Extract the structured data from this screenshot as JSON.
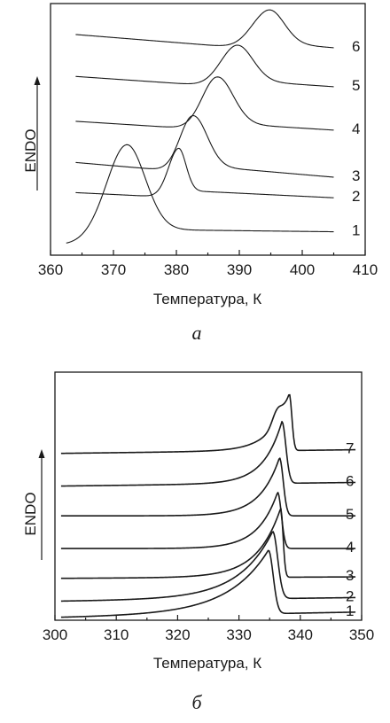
{
  "chart_data": [
    {
      "type": "line",
      "panel_label": "а",
      "xlabel": "Температура, К",
      "ylabel": "ENDO",
      "xlim": [
        360,
        410
      ],
      "x_ticks": [
        360,
        370,
        380,
        390,
        400,
        410
      ],
      "grid": false,
      "y_ticks_shown": false,
      "series": [
        {
          "name": "1",
          "x_start": 362.5,
          "x_end": 405,
          "baseline_start": 0.02,
          "baseline_end": 0.0,
          "peak_x": 372,
          "peak_height": 1.18,
          "width_left": 3.4,
          "width_right": 3.0
        },
        {
          "name": "2",
          "x_start": 364,
          "x_end": 405,
          "baseline_start": 0.73,
          "baseline_end": 0.56,
          "peak_x": 380.3,
          "peak_height": 0.62,
          "width_left": 1.6,
          "width_right": 1.2
        },
        {
          "name": "3",
          "x_start": 364,
          "x_end": 405,
          "baseline_start": 1.14,
          "baseline_end": 0.84,
          "peak_x": 382.5,
          "peak_height": 0.72,
          "width_left": 2.0,
          "width_right": 2.3
        },
        {
          "name": "4",
          "x_start": 364,
          "x_end": 405,
          "baseline_start": 1.7,
          "baseline_end": 1.48,
          "peak_x": 386.3,
          "peak_height": 0.67,
          "width_left": 2.3,
          "width_right": 2.6
        },
        {
          "name": "5",
          "x_start": 364,
          "x_end": 405,
          "baseline_start": 2.31,
          "baseline_end": 2.07,
          "peak_x": 389.4,
          "peak_height": 0.52,
          "width_left": 2.5,
          "width_right": 2.6
        },
        {
          "name": "6",
          "x_start": 364,
          "x_end": 405,
          "baseline_start": 2.88,
          "baseline_end": 2.6,
          "peak_x": 394.5,
          "peak_height": 0.49,
          "width_left": 2.6,
          "width_right": 2.5
        }
      ]
    },
    {
      "type": "line",
      "panel_label": "б",
      "xlabel": "Температура, К",
      "ylabel": "ENDO",
      "xlim": [
        300,
        350
      ],
      "x_ticks": [
        300,
        310,
        320,
        330,
        340,
        350
      ],
      "grid": false,
      "y_ticks_shown": false,
      "series": [
        {
          "name": "1",
          "x_start": 301,
          "x_end": 349,
          "baseline_start": 0.0,
          "baseline_end": 0.15,
          "peak_x": 334.8,
          "peak_height": 1.75,
          "width_left": 6.5,
          "drop_end": 337.2
        },
        {
          "name": "2",
          "x_start": 301,
          "x_end": 349,
          "baseline_start": 0.45,
          "baseline_end": 0.55,
          "peak_x": 335.5,
          "peak_height": 1.85,
          "width_left": 5.5,
          "drop_end": 338.0
        },
        {
          "name": "3",
          "x_start": 301,
          "x_end": 349,
          "baseline_start": 1.08,
          "baseline_end": 1.12,
          "peak_x": 336.8,
          "peak_height": 1.9,
          "width_left": 3.8,
          "drop_end": 338.0
        },
        {
          "name": "4",
          "x_start": 301,
          "x_end": 349,
          "baseline_start": 1.9,
          "baseline_end": 1.9,
          "peak_x": 336.3,
          "peak_height": 1.55,
          "width_left": 3.2,
          "drop_end": 338.2
        },
        {
          "name": "5",
          "x_start": 301,
          "x_end": 349,
          "baseline_start": 2.8,
          "baseline_end": 2.8,
          "peak_x": 336.6,
          "peak_height": 1.6,
          "width_left": 3.2,
          "drop_end": 338.5
        },
        {
          "name": "6",
          "x_start": 301,
          "x_end": 349,
          "baseline_start": 3.62,
          "baseline_end": 3.72,
          "peak_x": 337.0,
          "peak_height": 1.7,
          "width_left": 3.0,
          "drop_end": 339.0
        },
        {
          "name": "7",
          "x_start": 301,
          "x_end": 349,
          "baseline_start": 4.52,
          "baseline_end": 4.62,
          "peak_x": 338.2,
          "peak_height": 1.55,
          "width_left": 3.0,
          "drop_end": 339.5,
          "shoulder_x": 336.2
        }
      ]
    }
  ]
}
